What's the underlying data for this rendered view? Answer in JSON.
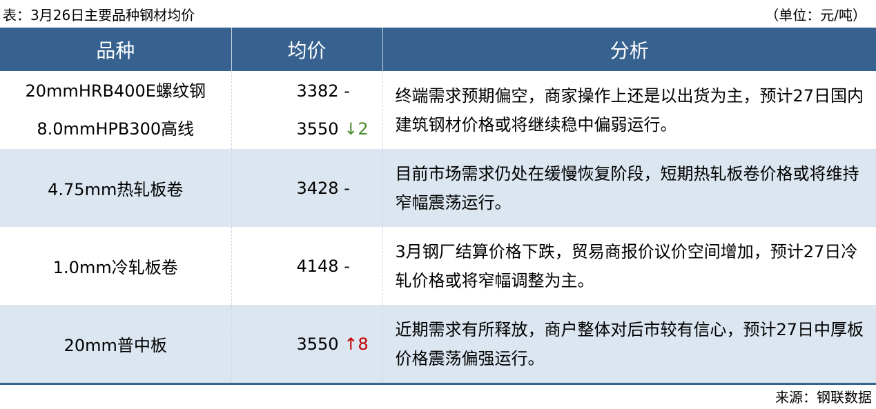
{
  "caption": "表：3月26日主要品种钢材均价",
  "unit": "（单位：元/吨）",
  "source": "来源：钢联数据",
  "headers": [
    "品种",
    "均价",
    "分析"
  ],
  "colors": {
    "header_bg": "#37618f",
    "alt_row_bg": "#dce6f0",
    "down": "#4c8a2f",
    "up": "#c00000"
  },
  "rows": [
    {
      "products": [
        "20mmHRB400E螺纹钢",
        "8.0mmHPB300高线"
      ],
      "prices": [
        {
          "value": "3382",
          "change_icon": "",
          "change": "-",
          "direction": "flat"
        },
        {
          "value": "3550",
          "change_icon": "↓",
          "change": "2",
          "direction": "down"
        }
      ],
      "analysis": "终端需求预期偏空，商家操作上还是以出货为主，预计27日国内建筑钢材价格或将继续稳中偏弱运行。"
    },
    {
      "products": [
        "4.75mm热轧板卷"
      ],
      "prices": [
        {
          "value": "3428",
          "change_icon": "",
          "change": "-",
          "direction": "flat"
        }
      ],
      "analysis": "目前市场需求仍处在缓慢恢复阶段，短期热轧板卷价格或将维持窄幅震荡运行。"
    },
    {
      "products": [
        "1.0mm冷轧板卷"
      ],
      "prices": [
        {
          "value": "4148",
          "change_icon": "",
          "change": "-",
          "direction": "flat"
        }
      ],
      "analysis": "3月钢厂结算价格下跌，贸易商报价议价空间增加，预计27日冷轧价格或将窄幅调整为主。"
    },
    {
      "products": [
        "20mm普中板"
      ],
      "prices": [
        {
          "value": "3550",
          "change_icon": "↑",
          "change": "8",
          "direction": "up"
        }
      ],
      "analysis": "近期需求有所释放，商户整体对后市较有信心，预计27日中厚板价格震荡偏强运行。"
    }
  ]
}
